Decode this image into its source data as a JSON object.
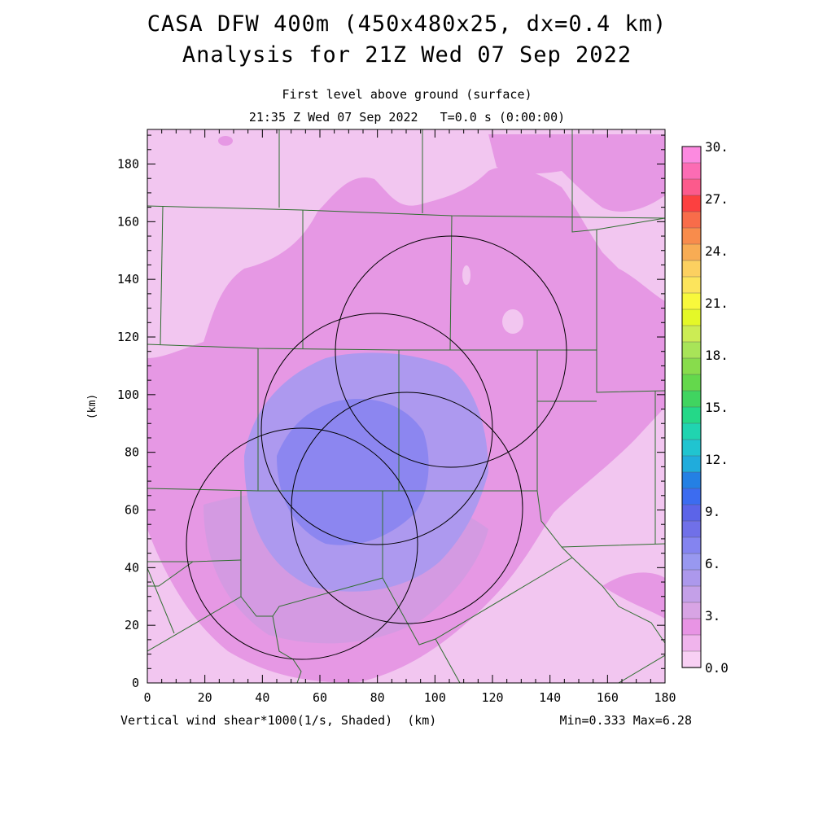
{
  "header": {
    "title_line1": "CASA DFW 400m (450x480x25, dx=0.4 km)",
    "title_line2": "Analysis for 21Z Wed 07 Sep 2022",
    "subtitle_line1": "First level above ground (surface)",
    "subtitle_line2": "21:35 Z Wed 07 Sep 2022   T=0.0 s (0:00:00)"
  },
  "footer": {
    "field_caption": "Vertical wind shear*1000(1/s, Shaded)  (km)",
    "min_max": "Min=0.333 Max=6.28"
  },
  "axes": {
    "x_ticks": [
      "0",
      "20",
      "40",
      "60",
      "80",
      "100",
      "120",
      "140",
      "160",
      "180"
    ],
    "y_ticks": [
      "0",
      "20",
      "40",
      "60",
      "80",
      "100",
      "120",
      "140",
      "160",
      "180"
    ],
    "y_label": "(km)",
    "x_range_km": [
      0,
      180
    ],
    "y_range_km": [
      0,
      192
    ]
  },
  "colorbar": {
    "labels": [
      "30.",
      "27.",
      "24.",
      "21.",
      "18.",
      "15.",
      "12.",
      "9.",
      "6.",
      "3.",
      "0.0"
    ],
    "colors": [
      "#fc8ae0",
      "#fc6cb4",
      "#fc5a8c",
      "#fc4040",
      "#f86c4a",
      "#f88c4c",
      "#f8ac54",
      "#fcd060",
      "#fce45c",
      "#f8f83c",
      "#e4f828",
      "#ccec54",
      "#a8e458",
      "#88dc4c",
      "#64d84c",
      "#40d460",
      "#24d888",
      "#20d4b0",
      "#20c4d0",
      "#20acdc",
      "#2480e4",
      "#3c6cf0",
      "#5c64e8",
      "#7070e8",
      "#8484f0",
      "#9898f0",
      "#ac98ec",
      "#c4a0e8",
      "#d8a4e4",
      "#e894e4",
      "#f0b4ec",
      "#f8d0f4"
    ]
  },
  "map": {
    "field_colors": {
      "lowest": "#f2c6f0",
      "low": "#e698e4",
      "mid_low": "#d49ae2",
      "mid": "#ad99ef",
      "high": "#8c86f0"
    },
    "radar_circles_center_km": [
      [
        54,
        48
      ],
      [
        80,
        88
      ],
      [
        106,
        116
      ],
      [
        90,
        62
      ]
    ],
    "radar_circle_radius_km": 40
  }
}
